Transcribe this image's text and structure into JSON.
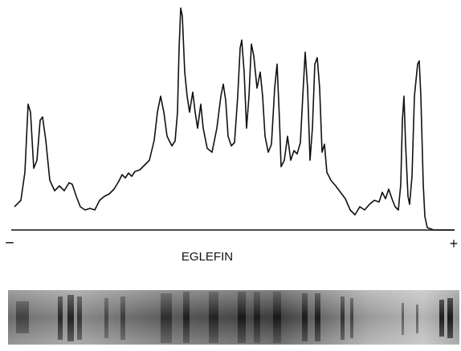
{
  "labels": {
    "minus": "−",
    "plus": "+",
    "caption": "EGLEFIN"
  }
}
